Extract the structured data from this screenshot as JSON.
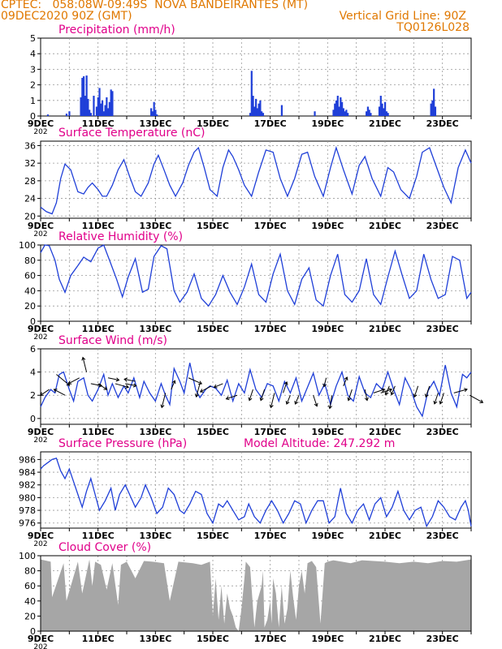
{
  "header": {
    "line1_left": "CPTEC:   058:08W-09:49S  NOVA BANDEIRANTES (MT)",
    "line2_left": "09DEC2020 90Z (GMT)",
    "line2_right": "Vertical Grid Line: 90Z",
    "line3_right": "TQ0126L028",
    "model_altitude": "Model Altitude: 247.292 m",
    "colors": {
      "header": "#e07800",
      "panel_title": "#e0008a",
      "line": "#1f3fd8",
      "bar": "#1f3fd8",
      "cloud": "#a6a6a6",
      "arrow": "#000000"
    }
  },
  "x_axis": {
    "range_days": [
      9,
      24
    ],
    "tick_labels": [
      "9DEC",
      "11DEC",
      "13DEC",
      "15DEC",
      "17DEC",
      "19DEC",
      "21DEC",
      "23DEC"
    ],
    "tick_days": [
      9,
      11,
      13,
      15,
      17,
      19,
      21,
      23
    ],
    "first_label_prefix": "202"
  },
  "chart_data": [
    {
      "id": "precip",
      "type": "bar",
      "title": "Precipitation (mm/h)",
      "ylim": [
        0,
        5
      ],
      "yticks": [
        0,
        1,
        2,
        3,
        4,
        5
      ],
      "x": [
        9.25,
        9.9,
        10.0,
        10.4,
        10.45,
        10.5,
        10.55,
        10.6,
        10.65,
        10.7,
        10.75,
        10.85,
        10.95,
        11.0,
        11.05,
        11.1,
        11.15,
        11.2,
        11.25,
        11.3,
        11.35,
        11.4,
        11.45,
        11.5,
        12.85,
        12.9,
        12.95,
        13.0,
        13.05,
        16.3,
        16.35,
        16.4,
        16.45,
        16.5,
        16.55,
        16.6,
        16.65,
        16.7,
        16.75,
        17.4,
        18.55,
        19.2,
        19.25,
        19.3,
        19.35,
        19.4,
        19.45,
        19.5,
        19.55,
        19.6,
        19.65,
        19.7,
        20.35,
        20.4,
        20.45,
        20.5,
        20.8,
        20.85,
        20.9,
        20.95,
        21.0,
        21.05,
        21.1,
        22.6,
        22.65,
        22.7,
        22.75
      ],
      "values": [
        0.1,
        0.15,
        0.3,
        1.2,
        2.45,
        2.55,
        1.3,
        2.6,
        1.1,
        0.4,
        0.2,
        1.3,
        0.6,
        1.2,
        1.8,
        0.8,
        1.0,
        0.3,
        0.7,
        1.2,
        0.5,
        0.9,
        1.7,
        1.6,
        0.5,
        0.3,
        0.9,
        0.4,
        0.1,
        0.2,
        2.9,
        1.3,
        0.6,
        1.1,
        0.5,
        0.8,
        1.0,
        0.3,
        0.2,
        0.7,
        0.3,
        0.4,
        0.8,
        1.0,
        1.3,
        0.6,
        1.2,
        0.9,
        0.5,
        0.3,
        0.4,
        0.2,
        0.3,
        0.6,
        0.4,
        0.2,
        0.6,
        1.3,
        0.8,
        0.5,
        0.9,
        0.3,
        0.2,
        0.8,
        1.0,
        1.75,
        0.6
      ]
    },
    {
      "id": "temp",
      "type": "line",
      "title": "Surface Temperature (nC)",
      "ylim": [
        19.5,
        37
      ],
      "yticks": [
        20,
        24,
        28,
        32,
        36
      ],
      "x": [
        9.0,
        9.2,
        9.4,
        9.55,
        9.7,
        9.85,
        10.05,
        10.3,
        10.5,
        10.65,
        10.8,
        11.0,
        11.15,
        11.3,
        11.5,
        11.7,
        11.9,
        12.1,
        12.3,
        12.5,
        12.75,
        12.95,
        13.1,
        13.3,
        13.5,
        13.7,
        13.95,
        14.15,
        14.35,
        14.5,
        14.7,
        14.9,
        15.15,
        15.35,
        15.55,
        15.7,
        15.9,
        16.1,
        16.35,
        16.6,
        16.85,
        17.1,
        17.35,
        17.6,
        17.85,
        18.1,
        18.3,
        18.55,
        18.85,
        19.1,
        19.3,
        19.55,
        19.85,
        20.1,
        20.3,
        20.55,
        20.85,
        21.1,
        21.3,
        21.55,
        21.85,
        22.1,
        22.3,
        22.55,
        22.8,
        23.05,
        23.3,
        23.55,
        23.8,
        24.0
      ],
      "values": [
        22.0,
        21.0,
        20.5,
        23.0,
        28.5,
        31.8,
        30.5,
        25.5,
        25.0,
        26.5,
        27.5,
        26.0,
        24.5,
        24.5,
        27.0,
        30.5,
        32.8,
        29.0,
        25.5,
        24.5,
        27.5,
        31.8,
        33.8,
        30.5,
        27.0,
        24.5,
        27.5,
        31.5,
        34.5,
        35.5,
        31.0,
        26.0,
        24.5,
        31.0,
        35.0,
        33.5,
        30.5,
        27.0,
        24.5,
        30.0,
        35.0,
        34.5,
        28.5,
        24.5,
        28.5,
        34.0,
        34.5,
        29.0,
        24.5,
        31.0,
        35.5,
        30.5,
        25.0,
        31.5,
        33.5,
        28.5,
        24.5,
        31.0,
        30.0,
        26.0,
        24.0,
        29.0,
        34.5,
        35.5,
        31.0,
        26.5,
        23.0,
        31.0,
        35.0,
        32.0
      ]
    },
    {
      "id": "rh",
      "type": "line",
      "title": "Relative Humidity (%)",
      "ylim": [
        0,
        100
      ],
      "yticks": [
        0,
        20,
        40,
        60,
        80,
        100
      ],
      "x": [
        9.0,
        9.15,
        9.3,
        9.5,
        9.65,
        9.85,
        10.05,
        10.3,
        10.5,
        10.75,
        11.0,
        11.2,
        11.45,
        11.65,
        11.85,
        12.05,
        12.3,
        12.55,
        12.75,
        12.95,
        13.2,
        13.4,
        13.65,
        13.85,
        14.1,
        14.35,
        14.6,
        14.85,
        15.1,
        15.35,
        15.6,
        15.85,
        16.1,
        16.35,
        16.6,
        16.85,
        17.1,
        17.35,
        17.6,
        17.85,
        18.1,
        18.35,
        18.6,
        18.85,
        19.1,
        19.35,
        19.6,
        19.85,
        20.1,
        20.35,
        20.6,
        20.85,
        21.1,
        21.35,
        21.6,
        21.85,
        22.1,
        22.35,
        22.6,
        22.85,
        23.1,
        23.35,
        23.6,
        23.85,
        24.0
      ],
      "values": [
        90,
        100,
        99,
        80,
        55,
        38,
        60,
        73,
        84,
        78,
        96,
        100,
        75,
        55,
        32,
        58,
        82,
        38,
        42,
        85,
        99,
        95,
        40,
        25,
        38,
        62,
        30,
        20,
        35,
        60,
        38,
        22,
        45,
        75,
        35,
        25,
        62,
        88,
        40,
        22,
        55,
        70,
        28,
        20,
        60,
        88,
        35,
        25,
        40,
        82,
        35,
        22,
        58,
        92,
        60,
        30,
        40,
        88,
        55,
        30,
        35,
        85,
        80,
        30,
        38
      ]
    },
    {
      "id": "wind",
      "type": "line",
      "title": "Surface Wind (m/s)",
      "ylim": [
        -0.5,
        6
      ],
      "yticks": [
        0,
        2,
        4,
        6
      ],
      "x": [
        9.0,
        9.15,
        9.35,
        9.5,
        9.65,
        9.8,
        10.0,
        10.15,
        10.3,
        10.5,
        10.65,
        10.8,
        11.0,
        11.2,
        11.35,
        11.5,
        11.7,
        11.9,
        12.05,
        12.25,
        12.45,
        12.6,
        12.8,
        13.0,
        13.2,
        13.35,
        13.5,
        13.65,
        13.85,
        14.0,
        14.2,
        14.4,
        14.55,
        14.75,
        14.9,
        15.1,
        15.3,
        15.5,
        15.7,
        15.9,
        16.1,
        16.3,
        16.5,
        16.7,
        16.9,
        17.1,
        17.3,
        17.5,
        17.7,
        17.9,
        18.1,
        18.3,
        18.5,
        18.7,
        18.9,
        19.1,
        19.3,
        19.5,
        19.7,
        19.9,
        20.1,
        20.3,
        20.5,
        20.7,
        20.9,
        21.1,
        21.3,
        21.5,
        21.7,
        21.9,
        22.1,
        22.3,
        22.5,
        22.7,
        22.9,
        23.1,
        23.3,
        23.5,
        23.7,
        23.85,
        24.0
      ],
      "values": [
        1.0,
        1.8,
        2.5,
        2.2,
        3.8,
        4.0,
        2.5,
        1.5,
        3.2,
        3.5,
        2.0,
        1.5,
        2.5,
        3.8,
        2.0,
        3.0,
        1.8,
        2.8,
        2.2,
        3.5,
        1.8,
        3.2,
        2.2,
        1.5,
        3.0,
        2.0,
        1.2,
        4.3,
        3.2,
        2.2,
        4.8,
        2.5,
        1.8,
        2.5,
        2.8,
        2.6,
        2.0,
        3.3,
        1.5,
        3.0,
        2.2,
        4.2,
        2.5,
        1.8,
        3.0,
        2.8,
        1.5,
        3.2,
        2.2,
        3.5,
        1.5,
        2.7,
        3.9,
        2.0,
        3.0,
        1.2,
        2.8,
        4.0,
        2.0,
        1.5,
        3.6,
        2.2,
        1.8,
        3.0,
        2.5,
        4.0,
        2.5,
        1.2,
        3.5,
        2.5,
        1.0,
        0.2,
        2.4,
        3.2,
        2.0,
        4.6,
        2.2,
        1.0,
        3.8,
        3.5,
        4.0
      ],
      "vectors": {
        "x": [
          9.3,
          9.55,
          9.85,
          10.35,
          10.6,
          10.75,
          11.0,
          11.35,
          11.6,
          11.95,
          12.3,
          13.35,
          13.55,
          14.15,
          14.55,
          14.95,
          15.35,
          15.85,
          16.4,
          16.8,
          17.15,
          17.45,
          17.7,
          18.0,
          18.5,
          18.95,
          19.15,
          19.55,
          19.85,
          20.3,
          20.6,
          20.85,
          21.15,
          21.35,
          22.15,
          22.55,
          22.85,
          23.05,
          23.4,
          23.95
        ],
        "y": [
          2.5,
          3.8,
          2.0,
          3.5,
          4.0,
          3.0,
          3.0,
          3.5,
          3.0,
          3.0,
          3.2,
          2.2,
          2.5,
          3.5,
          3.0,
          2.8,
          3.0,
          2.0,
          2.5,
          2.5,
          2.2,
          2.2,
          2.0,
          2.0,
          2.0,
          3.5,
          2.0,
          2.8,
          2.5,
          2.5,
          2.2,
          2.2,
          2.8,
          2.8,
          2.8,
          2.8,
          2.2,
          2.2,
          2.2,
          2.0
        ],
        "u": [
          -1.2,
          1.8,
          -1.5,
          -1.5,
          -0.5,
          1.5,
          1.2,
          1.5,
          1.8,
          1.5,
          -1.5,
          -0.5,
          0.5,
          1.8,
          -0.5,
          -1.5,
          -1.2,
          -1.5,
          -0.5,
          -0.5,
          -0.5,
          0.5,
          -0.5,
          -0.5,
          0.5,
          -0.3,
          -0.3,
          0.5,
          -0.5,
          0.3,
          1.5,
          1.5,
          -0.5,
          -0.5,
          -0.5,
          -0.5,
          -0.5,
          -0.5,
          1.8,
          1.8
        ],
        "v": [
          -0.8,
          -1.5,
          0.8,
          -0.8,
          2.0,
          -0.3,
          -0.8,
          -0.3,
          -0.5,
          -0.3,
          0.3,
          -2.0,
          1.2,
          -0.8,
          -1.8,
          -0.8,
          -0.5,
          -0.5,
          -1.5,
          -1.5,
          -2.0,
          1.5,
          -1.2,
          -1.2,
          -1.5,
          -1.2,
          -1.8,
          1.2,
          -1.5,
          -1.5,
          0.5,
          0.5,
          -1.2,
          -1.2,
          -1.5,
          -1.5,
          -1.5,
          -1.5,
          0.5,
          -1.0
        ]
      }
    },
    {
      "id": "pressure",
      "type": "line",
      "title": "Surface Pressure (hPa)",
      "ylim": [
        975.2,
        987.2
      ],
      "yticks": [
        976,
        978,
        980,
        982,
        984,
        986
      ],
      "x": [
        9.0,
        9.1,
        9.25,
        9.4,
        9.55,
        9.7,
        9.85,
        10.0,
        10.15,
        10.3,
        10.45,
        10.6,
        10.75,
        10.9,
        11.05,
        11.25,
        11.45,
        11.6,
        11.75,
        11.95,
        12.15,
        12.3,
        12.5,
        12.65,
        12.85,
        13.05,
        13.25,
        13.45,
        13.65,
        13.85,
        14.0,
        14.2,
        14.4,
        14.6,
        14.8,
        15.0,
        15.2,
        15.35,
        15.5,
        15.7,
        15.9,
        16.1,
        16.25,
        16.45,
        16.65,
        16.85,
        17.05,
        17.25,
        17.45,
        17.65,
        17.85,
        18.05,
        18.25,
        18.45,
        18.65,
        18.85,
        19.05,
        19.25,
        19.45,
        19.65,
        19.85,
        20.05,
        20.25,
        20.45,
        20.65,
        20.85,
        21.05,
        21.25,
        21.45,
        21.65,
        21.85,
        22.05,
        22.25,
        22.45,
        22.65,
        22.85,
        23.05,
        23.25,
        23.45,
        23.65,
        23.8,
        23.9,
        24.0
      ],
      "values": [
        984.5,
        985.0,
        985.5,
        986.0,
        986.2,
        984.2,
        983.0,
        984.5,
        982.5,
        980.5,
        978.5,
        981.0,
        983.0,
        980.5,
        978.0,
        979.5,
        981.5,
        978.0,
        980.5,
        982.0,
        980.0,
        978.5,
        980.0,
        982.0,
        980.0,
        977.5,
        978.5,
        981.5,
        980.5,
        978.0,
        977.5,
        979.0,
        981.0,
        980.5,
        977.5,
        976.0,
        979.0,
        978.5,
        979.5,
        978.0,
        976.5,
        977.0,
        979.0,
        977.0,
        976.0,
        978.0,
        979.5,
        978.0,
        976.0,
        977.5,
        979.5,
        979.0,
        976.0,
        978.0,
        979.5,
        979.5,
        976.0,
        977.0,
        981.5,
        977.5,
        976.0,
        978.0,
        979.0,
        976.5,
        979.0,
        980.0,
        977.0,
        978.5,
        981.0,
        978.0,
        976.5,
        978.0,
        978.5,
        975.5,
        977.0,
        979.5,
        978.5,
        977.0,
        976.5,
        978.5,
        979.5,
        978.0,
        975.5
      ]
    },
    {
      "id": "cloud",
      "type": "area",
      "title": "Cloud Cover (%)",
      "ylim": [
        0,
        100
      ],
      "yticks": [
        0,
        20,
        40,
        60,
        80,
        100
      ],
      "x": [
        9.0,
        9.35,
        9.4,
        9.8,
        9.9,
        10.3,
        10.45,
        10.7,
        10.8,
        10.9,
        11.1,
        11.3,
        11.5,
        11.7,
        11.8,
        12.0,
        12.3,
        12.6,
        12.9,
        13.3,
        13.5,
        13.8,
        14.3,
        14.6,
        14.9,
        15.0,
        15.1,
        15.2,
        15.3,
        15.4,
        15.5,
        15.6,
        15.7,
        15.8,
        15.9,
        16.0,
        16.1,
        16.15,
        16.3,
        16.45,
        16.55,
        16.7,
        16.75,
        16.8,
        16.9,
        17.0,
        17.05,
        17.1,
        17.2,
        17.3,
        17.4,
        17.5,
        17.6,
        17.7,
        17.8,
        17.9,
        18.0,
        18.1,
        18.2,
        18.3,
        18.45,
        18.6,
        18.75,
        18.9,
        19.0,
        19.2,
        19.5,
        19.8,
        20.2,
        20.6,
        21.0,
        21.5,
        22.0,
        22.5,
        23.0,
        23.5,
        24.0
      ],
      "values": [
        95,
        92,
        45,
        90,
        40,
        92,
        50,
        95,
        60,
        92,
        88,
        55,
        90,
        35,
        88,
        92,
        70,
        93,
        92,
        90,
        40,
        92,
        90,
        88,
        92,
        20,
        70,
        15,
        60,
        10,
        50,
        30,
        20,
        5,
        0,
        30,
        70,
        92,
        85,
        5,
        40,
        60,
        80,
        5,
        15,
        40,
        10,
        70,
        50,
        5,
        60,
        10,
        30,
        80,
        45,
        15,
        60,
        80,
        50,
        90,
        93,
        85,
        10,
        90,
        92,
        94,
        92,
        90,
        94,
        93,
        92,
        90,
        92,
        90,
        93,
        92,
        95
      ]
    }
  ]
}
